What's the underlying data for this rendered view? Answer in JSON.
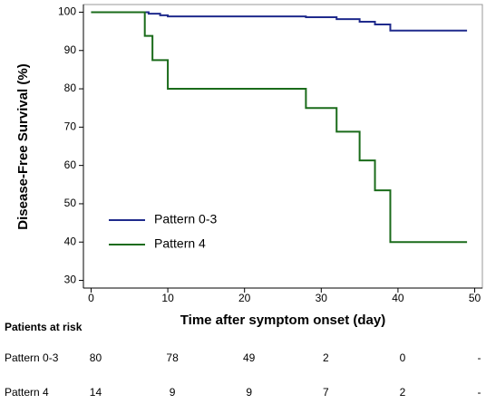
{
  "chart_data": {
    "type": "step",
    "xlabel": "Time after symptom onset (day)",
    "ylabel": "Disease-Free Survival (%)",
    "xlim": [
      -1,
      51
    ],
    "xticks": [
      0,
      10,
      20,
      30,
      40,
      50
    ],
    "ylim": [
      28,
      102
    ],
    "yticks": [
      30,
      40,
      50,
      60,
      70,
      80,
      90,
      100
    ],
    "legend": "center left",
    "series": [
      {
        "name": "Pattern 0-3",
        "color": "#1f2a8c",
        "x": [
          0,
          7.5,
          9,
          10,
          28,
          32,
          35,
          37,
          39,
          49
        ],
        "values": [
          100,
          99.6,
          99.2,
          98.9,
          98.7,
          98.2,
          97.5,
          96.8,
          95.2,
          95.2
        ]
      },
      {
        "name": "Pattern 4",
        "color": "#1a6b1a",
        "x": [
          0,
          7,
          8,
          10,
          28,
          32,
          35,
          37,
          39,
          49
        ],
        "values": [
          100,
          93.8,
          87.5,
          80,
          75,
          68.8,
          61.3,
          53.5,
          40,
          40
        ]
      }
    ],
    "risk_table": {
      "title": "Patients at risk",
      "rows": [
        {
          "name": "Pattern 0-3",
          "cells": [
            "80",
            "78",
            "49",
            "2",
            "0",
            "-"
          ]
        },
        {
          "name": "Pattern 4",
          "cells": [
            "14",
            "9",
            "9",
            "7",
            "2",
            "-"
          ]
        }
      ]
    }
  }
}
